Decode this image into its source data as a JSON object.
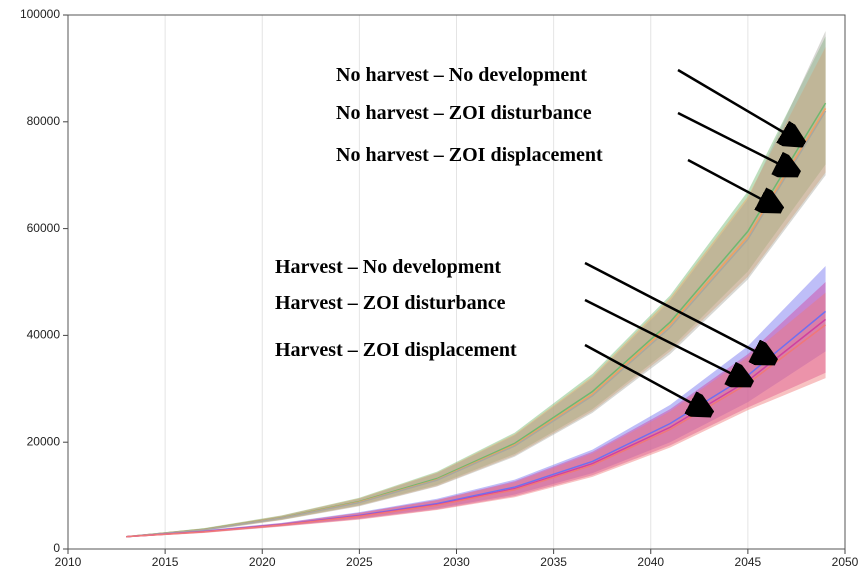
{
  "chart_data": {
    "type": "band-line",
    "x": [
      2013,
      2017,
      2021,
      2025,
      2029,
      2033,
      2037,
      2041,
      2045,
      2049
    ],
    "xlim": [
      2010,
      2050
    ],
    "xticks": [
      2010,
      2015,
      2020,
      2025,
      2030,
      2035,
      2040,
      2045,
      2050
    ],
    "ylim": [
      0,
      100000
    ],
    "yticks": [
      0,
      20000,
      40000,
      60000,
      80000,
      100000
    ],
    "grid": true,
    "series": [
      {
        "name": "No harvest – No development",
        "color": "#6fb86f",
        "values": [
          2300,
          3700,
          5900,
          8900,
          13200,
          19800,
          29500,
          42500,
          59500,
          83500
        ],
        "lower": [
          2200,
          3500,
          5500,
          8200,
          12000,
          17800,
          26200,
          37500,
          52000,
          72000
        ],
        "upper": [
          2400,
          3900,
          6300,
          9600,
          14500,
          21800,
          32800,
          47500,
          67000,
          96000
        ]
      },
      {
        "name": "No harvest – ZOI disturbance",
        "color": "#f0a060",
        "values": [
          2300,
          3650,
          5850,
          8800,
          13000,
          19500,
          29000,
          42000,
          58500,
          82500
        ],
        "lower": [
          2200,
          3450,
          5450,
          8100,
          11800,
          17500,
          25800,
          37000,
          51000,
          70500
        ],
        "upper": [
          2400,
          3850,
          6250,
          9500,
          14300,
          21500,
          32300,
          47000,
          66000,
          94000
        ]
      },
      {
        "name": "No harvest – ZOI displacement",
        "color": "#a8a8a0",
        "values": [
          2300,
          3600,
          5800,
          8700,
          12900,
          19300,
          28700,
          41500,
          58000,
          82000
        ],
        "lower": [
          2200,
          3400,
          5400,
          8000,
          11700,
          17300,
          25500,
          36500,
          50500,
          70000
        ],
        "upper": [
          2400,
          3800,
          6200,
          9400,
          14200,
          21300,
          32000,
          46500,
          65500,
          97000
        ]
      },
      {
        "name": "Harvest – No development",
        "color": "#6f6ff0",
        "values": [
          2300,
          3300,
          4600,
          6300,
          8500,
          11600,
          16400,
          23500,
          32500,
          44500
        ],
        "lower": [
          2200,
          3100,
          4300,
          5700,
          7600,
          10200,
          14200,
          20000,
          27500,
          37000
        ],
        "upper": [
          2400,
          3500,
          4900,
          6900,
          9400,
          13000,
          18600,
          27000,
          38000,
          53000
        ]
      },
      {
        "name": "Harvest – ZOI disturbance",
        "color": "#d040a0",
        "values": [
          2300,
          3250,
          4550,
          6200,
          8300,
          11300,
          16000,
          22800,
          31500,
          43000
        ],
        "lower": [
          2200,
          3050,
          4250,
          5600,
          7400,
          9900,
          13800,
          19400,
          26500,
          33000
        ],
        "upper": [
          2400,
          3450,
          4850,
          6800,
          9200,
          12700,
          18200,
          26200,
          36500,
          50000
        ]
      },
      {
        "name": "Harvest – ZOI displacement",
        "color": "#f07878",
        "values": [
          2300,
          3200,
          4500,
          6100,
          8200,
          11100,
          15700,
          22400,
          31000,
          42000
        ],
        "lower": [
          2200,
          3000,
          4200,
          5500,
          7300,
          9700,
          13500,
          19000,
          26000,
          32000
        ],
        "upper": [
          2400,
          3400,
          4800,
          6700,
          9100,
          12500,
          17900,
          25800,
          36000,
          48000
        ]
      }
    ]
  }
}
